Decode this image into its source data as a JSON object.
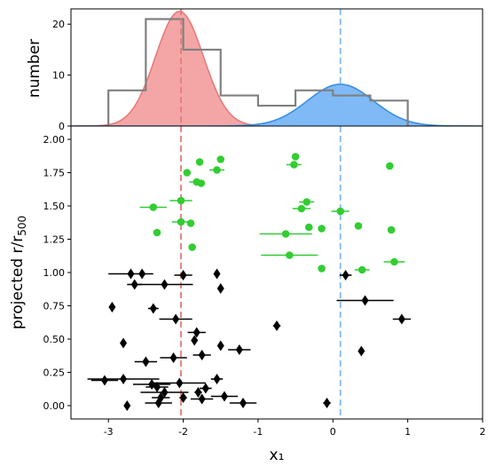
{
  "chart_data": [
    {
      "panel": "top",
      "type": "histogram",
      "ylabel": "number",
      "xlim": [
        -3.5,
        2
      ],
      "ylim": [
        0,
        23
      ],
      "yticks": [
        0,
        10,
        20
      ],
      "histogram": {
        "color": "#808080",
        "bins": [
          {
            "x0": -3.0,
            "x1": -2.5,
            "count": 7
          },
          {
            "x0": -2.5,
            "x1": -2.0,
            "count": 21
          },
          {
            "x0": -2.0,
            "x1": -1.5,
            "count": 15
          },
          {
            "x0": -1.5,
            "x1": -1.0,
            "count": 6
          },
          {
            "x0": -1.0,
            "x1": -0.5,
            "count": 4
          },
          {
            "x0": -0.5,
            "x1": 0.0,
            "count": 7
          },
          {
            "x0": 0.0,
            "x1": 0.5,
            "count": 6
          },
          {
            "x0": 0.5,
            "x1": 1.0,
            "count": 5
          }
        ]
      },
      "gaussians": [
        {
          "mu": -2.05,
          "sigma": 0.32,
          "amp": 22.5,
          "fill": "#f4a6a6",
          "line": "#e87a7a"
        },
        {
          "mu": 0.1,
          "sigma": 0.44,
          "amp": 8.2,
          "fill": "#7fbaf7",
          "line": "#3b8fe0"
        }
      ],
      "vlines": [
        {
          "x": -2.03,
          "color": "#e87a7a"
        },
        {
          "x": 0.1,
          "color": "#7fbaf7"
        }
      ]
    },
    {
      "panel": "bottom",
      "type": "scatter",
      "xlabel": "x₁",
      "ylabel_main": "projected  r/r",
      "ylabel_sub": "500",
      "xlim": [
        -3.5,
        2
      ],
      "ylim": [
        -0.1,
        2.1
      ],
      "xticks": [
        -3,
        -2,
        -1,
        0,
        1,
        2
      ],
      "yticks": [
        0.0,
        0.25,
        0.5,
        0.75,
        1.0,
        1.25,
        1.5,
        1.75,
        2.0
      ],
      "ytick_labels": [
        "0.00",
        "0.25",
        "0.50",
        "0.75",
        "1.00",
        "1.25",
        "1.50",
        "1.75",
        "2.00"
      ],
      "series": [
        {
          "marker": "circle",
          "color": "#32cd32",
          "points": [
            {
              "x": -1.78,
              "y": 1.83,
              "err": 0
            },
            {
              "x": -1.5,
              "y": 1.85,
              "err": 0
            },
            {
              "x": -0.5,
              "y": 1.87,
              "err": 0
            },
            {
              "x": -0.52,
              "y": 1.81,
              "err": 0.1
            },
            {
              "x": 0.76,
              "y": 1.8,
              "err": 0
            },
            {
              "x": -1.55,
              "y": 1.77,
              "err": 0.1
            },
            {
              "x": -1.95,
              "y": 1.75,
              "err": 0
            },
            {
              "x": -1.82,
              "y": 1.68,
              "err": 0.1
            },
            {
              "x": -1.76,
              "y": 1.67,
              "err": 0
            },
            {
              "x": -0.35,
              "y": 1.53,
              "err": 0.1
            },
            {
              "x": -2.03,
              "y": 1.54,
              "err": 0.15
            },
            {
              "x": -2.4,
              "y": 1.49,
              "err": 0.18
            },
            {
              "x": -0.42,
              "y": 1.48,
              "err": 0.12
            },
            {
              "x": 0.1,
              "y": 1.46,
              "err": 0.12
            },
            {
              "x": -2.03,
              "y": 1.38,
              "err": 0.12
            },
            {
              "x": -1.9,
              "y": 1.37,
              "err": 0
            },
            {
              "x": 0.34,
              "y": 1.35,
              "err": 0
            },
            {
              "x": -0.32,
              "y": 1.34,
              "err": 0
            },
            {
              "x": -0.15,
              "y": 1.33,
              "err": 0
            },
            {
              "x": 0.78,
              "y": 1.32,
              "err": 0.05
            },
            {
              "x": -2.35,
              "y": 1.3,
              "err": 0
            },
            {
              "x": -0.63,
              "y": 1.29,
              "err": 0.35
            },
            {
              "x": -1.88,
              "y": 1.19,
              "err": 0
            },
            {
              "x": -0.58,
              "y": 1.13,
              "err": 0.38
            },
            {
              "x": 0.82,
              "y": 1.08,
              "err": 0.14
            },
            {
              "x": 0.39,
              "y": 1.02,
              "err": 0.1
            },
            {
              "x": -0.15,
              "y": 1.03,
              "err": 0
            }
          ]
        },
        {
          "marker": "diamond",
          "color": "#000000",
          "points": [
            {
              "x": -2.7,
              "y": 0.99,
              "err": 0.3
            },
            {
              "x": -2.55,
              "y": 0.99,
              "err": 0
            },
            {
              "x": -2.0,
              "y": 0.98,
              "err": 0.12
            },
            {
              "x": -1.55,
              "y": 0.99,
              "err": 0
            },
            {
              "x": 0.17,
              "y": 0.98,
              "err": 0.08
            },
            {
              "x": -2.65,
              "y": 0.91,
              "err": 0.1
            },
            {
              "x": -2.25,
              "y": 0.91,
              "err": 0.38
            },
            {
              "x": -1.5,
              "y": 0.88,
              "err": 0
            },
            {
              "x": 0.43,
              "y": 0.79,
              "err": 0.38
            },
            {
              "x": -2.95,
              "y": 0.74,
              "err": 0
            },
            {
              "x": -2.4,
              "y": 0.73,
              "err": 0.07
            },
            {
              "x": -2.1,
              "y": 0.65,
              "err": 0.22
            },
            {
              "x": 0.92,
              "y": 0.65,
              "err": 0.12
            },
            {
              "x": -0.75,
              "y": 0.6,
              "err": 0.05
            },
            {
              "x": -1.82,
              "y": 0.55,
              "err": 0.12
            },
            {
              "x": -1.85,
              "y": 0.49,
              "err": 0
            },
            {
              "x": -2.8,
              "y": 0.47,
              "err": 0
            },
            {
              "x": -1.5,
              "y": 0.45,
              "err": 0
            },
            {
              "x": -1.25,
              "y": 0.42,
              "err": 0.15
            },
            {
              "x": 0.38,
              "y": 0.41,
              "err": 0
            },
            {
              "x": -1.75,
              "y": 0.38,
              "err": 0.12
            },
            {
              "x": -2.13,
              "y": 0.36,
              "err": 0.18
            },
            {
              "x": -2.5,
              "y": 0.33,
              "err": 0.15
            },
            {
              "x": -3.05,
              "y": 0.19,
              "err": 0.18
            },
            {
              "x": -2.8,
              "y": 0.2,
              "err": 0.48
            },
            {
              "x": -2.42,
              "y": 0.16,
              "err": 0.25
            },
            {
              "x": -2.35,
              "y": 0.14,
              "err": 0.15
            },
            {
              "x": -2.05,
              "y": 0.17,
              "err": 0.35
            },
            {
              "x": -1.8,
              "y": 0.1,
              "err": 0.05
            },
            {
              "x": -1.7,
              "y": 0.13,
              "err": 0.08
            },
            {
              "x": -2.25,
              "y": 0.1,
              "err": 0.32
            },
            {
              "x": -1.55,
              "y": 0.2,
              "err": 0.08
            },
            {
              "x": -2.3,
              "y": 0.06,
              "err": 0.12
            },
            {
              "x": -2.0,
              "y": 0.06,
              "err": 0.05
            },
            {
              "x": -1.75,
              "y": 0.05,
              "err": 0.15
            },
            {
              "x": -1.45,
              "y": 0.07,
              "err": 0.18
            },
            {
              "x": -2.75,
              "y": 0.0,
              "err": 0
            },
            {
              "x": -2.33,
              "y": 0.02,
              "err": 0.18
            },
            {
              "x": -1.2,
              "y": 0.02,
              "err": 0.18
            },
            {
              "x": -0.08,
              "y": 0.02,
              "err": 0.05
            }
          ]
        }
      ],
      "vlines": [
        {
          "x": -2.03,
          "color": "#e87a7a"
        },
        {
          "x": 0.1,
          "color": "#7fbaf7"
        }
      ]
    }
  ]
}
